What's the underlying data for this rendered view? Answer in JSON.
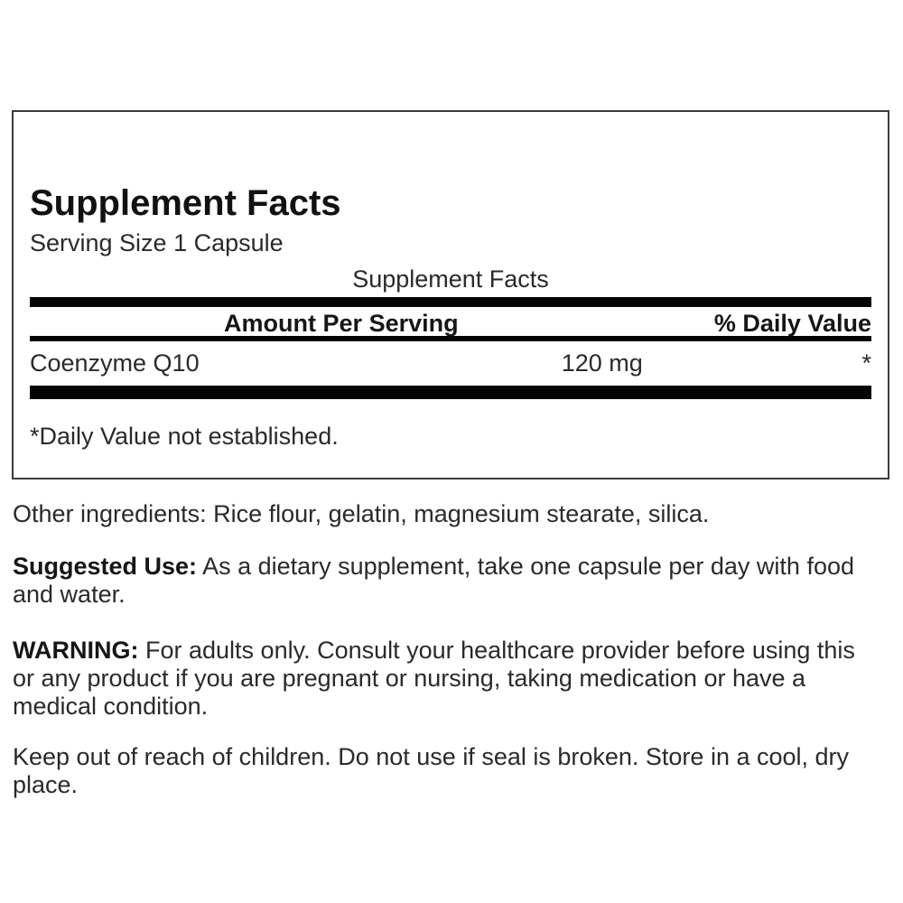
{
  "panel": {
    "title": "Supplement Facts",
    "serving_size": "Serving Size 1 Capsule",
    "table_caption": "Supplement Facts",
    "columns": {
      "amount": "Amount Per Serving",
      "daily_value": "% Daily Value"
    },
    "rows": [
      {
        "name": "Coenzyme Q10",
        "amount": "120 mg",
        "daily_value": "*"
      }
    ],
    "footnote": "*Daily Value not established."
  },
  "info": {
    "other_ingredients": "Other ingredients: Rice flour, gelatin, magnesium stearate, silica.",
    "suggested_use_label": "Suggested Use:",
    "suggested_use": "As a dietary supplement, take one capsule per day with food and water.",
    "warning_label": "WARNING:",
    "warning": "For adults only. Consult your healthcare provider before using this or any product if you are pregnant or nursing, taking medication or have a medical condition.",
    "storage": "Keep out of reach of children. Do not use if seal is broken. Store in a cool, dry place."
  },
  "colors": {
    "divider_bar": "#050505",
    "panel_border": "#3b3b3b",
    "text": "#2a2a2a",
    "background": "#ffffff"
  }
}
